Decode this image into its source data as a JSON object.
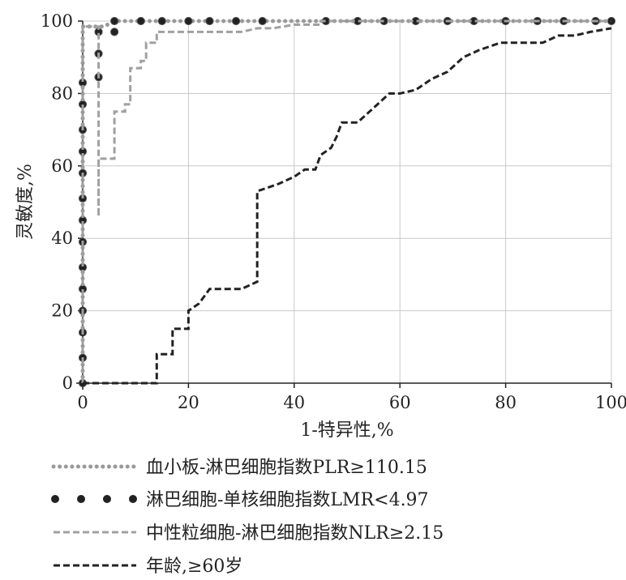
{
  "chart_data": {
    "type": "line",
    "xlabel": "1-特异性,%",
    "ylabel": "灵敏度,%",
    "xlim": [
      0,
      100
    ],
    "ylim": [
      0,
      100
    ],
    "x_ticks": [
      "0",
      "20",
      "40",
      "60",
      "80",
      "100"
    ],
    "y_ticks": [
      "0",
      "20",
      "40",
      "60",
      "80",
      "100"
    ],
    "grid": true,
    "legend_position": "bottom",
    "series": [
      {
        "name": "血小板-淋巴细胞指数PLR≥110.15",
        "color": "#999999",
        "style": "dotted-line",
        "points": [
          [
            0,
            0
          ],
          [
            0,
            2
          ],
          [
            0,
            7
          ],
          [
            0,
            13
          ],
          [
            0,
            20
          ],
          [
            0,
            26
          ],
          [
            0,
            33
          ],
          [
            0,
            39
          ],
          [
            0,
            46
          ],
          [
            0,
            52
          ],
          [
            0,
            59
          ],
          [
            0,
            65
          ],
          [
            0,
            72
          ],
          [
            0,
            78
          ],
          [
            0,
            85
          ],
          [
            0,
            91
          ],
          [
            0,
            97
          ],
          [
            0,
            98.5
          ],
          [
            2,
            98.5
          ],
          [
            4,
            98.5
          ],
          [
            6,
            100
          ],
          [
            100,
            100
          ]
        ]
      },
      {
        "name": "淋巴细胞-单核细胞指数LMR<4.97",
        "color": "#222222",
        "style": "markers",
        "points": [
          [
            0,
            0
          ],
          [
            0,
            7
          ],
          [
            0,
            14
          ],
          [
            0,
            20
          ],
          [
            0,
            26
          ],
          [
            0,
            32
          ],
          [
            0,
            39
          ],
          [
            0,
            45
          ],
          [
            0,
            51
          ],
          [
            0,
            58
          ],
          [
            0,
            64
          ],
          [
            0,
            70
          ],
          [
            0,
            77
          ],
          [
            0,
            83
          ],
          [
            3,
            84.5
          ],
          [
            3,
            91
          ],
          [
            3,
            97
          ],
          [
            6,
            97
          ],
          [
            6,
            100
          ],
          [
            11,
            100
          ],
          [
            15,
            100
          ],
          [
            20,
            100
          ],
          [
            24,
            100
          ],
          [
            29,
            100
          ],
          [
            34,
            100
          ],
          [
            46,
            100
          ],
          [
            52,
            100
          ],
          [
            57,
            100
          ],
          [
            63,
            100
          ],
          [
            69,
            100
          ],
          [
            74,
            100
          ],
          [
            80,
            100
          ],
          [
            86,
            100
          ],
          [
            91,
            100
          ],
          [
            97,
            100
          ],
          [
            100,
            100
          ]
        ]
      },
      {
        "name": "中性粒细胞-淋巴细胞指数NLR≥2.15",
        "color": "#a0a0a0",
        "style": "dashed",
        "points": [
          [
            0,
            0
          ],
          [
            0,
            98.5
          ],
          [
            3,
            98.5
          ],
          [
            3,
            46
          ],
          [
            3,
            62
          ],
          [
            6,
            62
          ],
          [
            6,
            75
          ],
          [
            8,
            75
          ],
          [
            8,
            77
          ],
          [
            9,
            77
          ],
          [
            9,
            87
          ],
          [
            11,
            87
          ],
          [
            11,
            89
          ],
          [
            12,
            89
          ],
          [
            12,
            94
          ],
          [
            14,
            94
          ],
          [
            14,
            97
          ],
          [
            30,
            97
          ],
          [
            33,
            98
          ],
          [
            36,
            98
          ],
          [
            40,
            99
          ],
          [
            45,
            99
          ],
          [
            45,
            100
          ],
          [
            100,
            100
          ]
        ]
      },
      {
        "name": "年龄,≥60岁",
        "color": "#222222",
        "style": "dashed",
        "points": [
          [
            0,
            0
          ],
          [
            14,
            0
          ],
          [
            14,
            8
          ],
          [
            17,
            8
          ],
          [
            17,
            15
          ],
          [
            20,
            15
          ],
          [
            20,
            20
          ],
          [
            22,
            22
          ],
          [
            24,
            26
          ],
          [
            30,
            26
          ],
          [
            33,
            28
          ],
          [
            33,
            53
          ],
          [
            37,
            55
          ],
          [
            40,
            57
          ],
          [
            42,
            59
          ],
          [
            44,
            59
          ],
          [
            45,
            63
          ],
          [
            47,
            65
          ],
          [
            48,
            68
          ],
          [
            49,
            72
          ],
          [
            52,
            72
          ],
          [
            55,
            76
          ],
          [
            58,
            80
          ],
          [
            60,
            80
          ],
          [
            63,
            81
          ],
          [
            66,
            84
          ],
          [
            69,
            86
          ],
          [
            72,
            90
          ],
          [
            75,
            92
          ],
          [
            79,
            94
          ],
          [
            84,
            94
          ],
          [
            87,
            94
          ],
          [
            90,
            96
          ],
          [
            93,
            96
          ],
          [
            96,
            97
          ],
          [
            100,
            98
          ]
        ]
      }
    ]
  }
}
